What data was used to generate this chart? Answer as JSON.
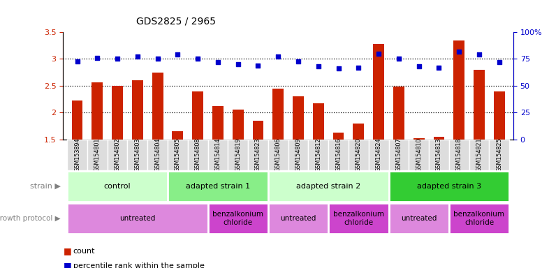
{
  "title": "GDS2825 / 2965",
  "samples": [
    "GSM153894",
    "GSM154801",
    "GSM154802",
    "GSM154803",
    "GSM154804",
    "GSM154805",
    "GSM154808",
    "GSM154814",
    "GSM154819",
    "GSM154823",
    "GSM154806",
    "GSM154809",
    "GSM154812",
    "GSM154816",
    "GSM154820",
    "GSM154824",
    "GSM154807",
    "GSM154810",
    "GSM154813",
    "GSM154818",
    "GSM154821",
    "GSM154825"
  ],
  "counts": [
    2.22,
    2.57,
    2.5,
    2.6,
    2.75,
    1.65,
    2.4,
    2.12,
    2.05,
    1.85,
    2.45,
    2.3,
    2.17,
    1.63,
    1.8,
    3.28,
    2.48,
    1.52,
    1.55,
    3.35,
    2.8,
    2.4
  ],
  "percentile": [
    73,
    76,
    75,
    77,
    75,
    79,
    75,
    72,
    70,
    69,
    77,
    73,
    68,
    66,
    67,
    80,
    75,
    68,
    67,
    82,
    79,
    72
  ],
  "ylim_left": [
    1.5,
    3.5
  ],
  "ylim_right": [
    0,
    100
  ],
  "bar_color": "#cc2200",
  "dot_color": "#0000cc",
  "yticks_left": [
    1.5,
    2.0,
    2.5,
    3.0,
    3.5
  ],
  "yticks_right": [
    0,
    25,
    50,
    75,
    100
  ],
  "ytick_labels_left": [
    "1.5",
    "2",
    "2.5",
    "3",
    "3.5"
  ],
  "ytick_labels_right": [
    "0",
    "25",
    "50",
    "75",
    "100%"
  ],
  "strain_groups": [
    {
      "label": "control",
      "start": 0,
      "end": 5,
      "color": "#ccffcc"
    },
    {
      "label": "adapted strain 1",
      "start": 5,
      "end": 10,
      "color": "#88ee88"
    },
    {
      "label": "adapted strain 2",
      "start": 10,
      "end": 16,
      "color": "#ccffcc"
    },
    {
      "label": "adapted strain 3",
      "start": 16,
      "end": 22,
      "color": "#33cc33"
    }
  ],
  "protocol_groups": [
    {
      "label": "untreated",
      "start": 0,
      "end": 7,
      "color": "#dd88dd"
    },
    {
      "label": "benzalkonium\nchloride",
      "start": 7,
      "end": 10,
      "color": "#cc44cc"
    },
    {
      "label": "untreated",
      "start": 10,
      "end": 13,
      "color": "#dd88dd"
    },
    {
      "label": "benzalkonium\nchloride",
      "start": 13,
      "end": 16,
      "color": "#cc44cc"
    },
    {
      "label": "untreated",
      "start": 16,
      "end": 19,
      "color": "#dd88dd"
    },
    {
      "label": "benzalkonium\nchloride",
      "start": 19,
      "end": 22,
      "color": "#cc44cc"
    }
  ],
  "grid_lines": [
    2.0,
    2.5,
    3.0
  ],
  "background_color": "#ffffff",
  "tick_label_bg": "#dddddd"
}
